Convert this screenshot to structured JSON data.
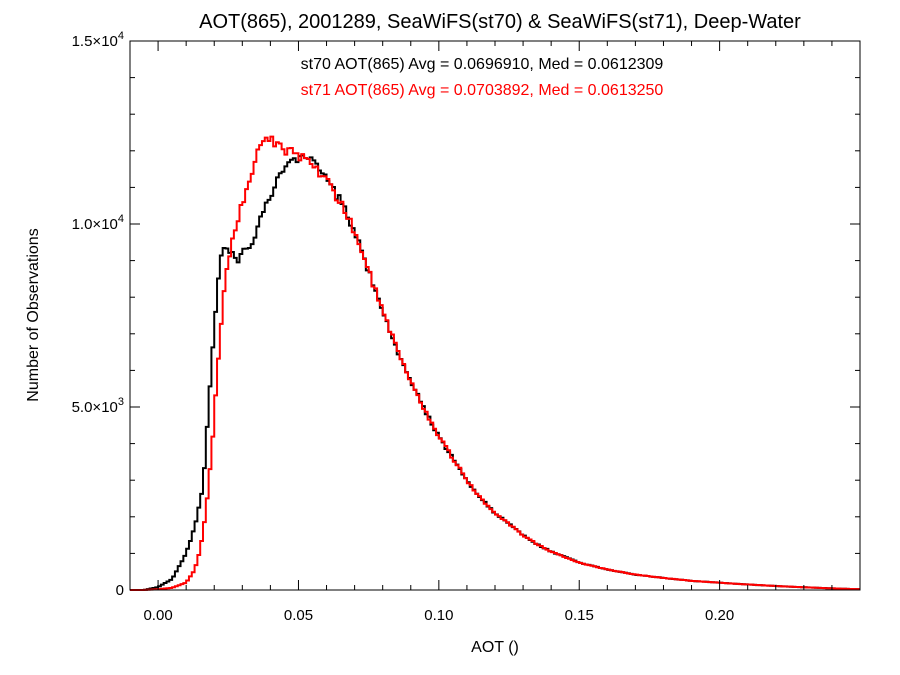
{
  "chart_data": {
    "type": "histogram",
    "title": "AOT(865), 2001289, SeaWiFS(st70) & SeaWiFS(st71), Deep-Water",
    "xlabel": "AOT ()",
    "ylabel": "Number of Observations",
    "xlim": [
      -0.01,
      0.25
    ],
    "ylim": [
      0,
      15000
    ],
    "x_ticks": [
      {
        "value": 0.0,
        "label": "0.00"
      },
      {
        "value": 0.05,
        "label": "0.05"
      },
      {
        "value": 0.1,
        "label": "0.10"
      },
      {
        "value": 0.15,
        "label": "0.15"
      },
      {
        "value": 0.2,
        "label": "0.20"
      }
    ],
    "y_ticks": [
      {
        "value": 0,
        "mantissa": "0",
        "exponent": ""
      },
      {
        "value": 5000,
        "mantissa": "5.0×10",
        "exponent": "3"
      },
      {
        "value": 10000,
        "mantissa": "1.0×10",
        "exponent": "4"
      },
      {
        "value": 15000,
        "mantissa": "1.5×10",
        "exponent": "4"
      }
    ],
    "grid": false,
    "bin_width": 0.001,
    "series": [
      {
        "name": "st70",
        "color": "#000000",
        "stats_label": "st70 AOT(865) Avg = 0.0696910, Med = 0.0612309",
        "points": [
          [
            -0.005,
            0
          ],
          [
            0.0,
            80
          ],
          [
            0.005,
            300
          ],
          [
            0.01,
            1000
          ],
          [
            0.013,
            1700
          ],
          [
            0.016,
            2800
          ],
          [
            0.018,
            5000
          ],
          [
            0.02,
            7200
          ],
          [
            0.022,
            8900
          ],
          [
            0.024,
            9500
          ],
          [
            0.026,
            9200
          ],
          [
            0.028,
            9000
          ],
          [
            0.03,
            9200
          ],
          [
            0.033,
            9400
          ],
          [
            0.036,
            10100
          ],
          [
            0.04,
            10800
          ],
          [
            0.045,
            11500
          ],
          [
            0.05,
            11800
          ],
          [
            0.055,
            11700
          ],
          [
            0.06,
            11200
          ],
          [
            0.065,
            10600
          ],
          [
            0.07,
            9800
          ],
          [
            0.075,
            8700
          ],
          [
            0.08,
            7600
          ],
          [
            0.085,
            6600
          ],
          [
            0.09,
            5700
          ],
          [
            0.095,
            4900
          ],
          [
            0.1,
            4200
          ],
          [
            0.105,
            3600
          ],
          [
            0.11,
            3000
          ],
          [
            0.115,
            2500
          ],
          [
            0.12,
            2100
          ],
          [
            0.125,
            1800
          ],
          [
            0.13,
            1500
          ],
          [
            0.135,
            1250
          ],
          [
            0.14,
            1050
          ],
          [
            0.15,
            750
          ],
          [
            0.16,
            560
          ],
          [
            0.17,
            420
          ],
          [
            0.18,
            330
          ],
          [
            0.19,
            250
          ],
          [
            0.2,
            200
          ],
          [
            0.21,
            150
          ],
          [
            0.22,
            110
          ],
          [
            0.23,
            75
          ],
          [
            0.24,
            45
          ],
          [
            0.248,
            25
          ]
        ]
      },
      {
        "name": "st71",
        "color": "#ff0000",
        "stats_label": "st71 AOT(865) Avg = 0.0703892, Med = 0.0613250",
        "points": [
          [
            -0.005,
            0
          ],
          [
            0.0,
            20
          ],
          [
            0.005,
            60
          ],
          [
            0.01,
            200
          ],
          [
            0.013,
            550
          ],
          [
            0.015,
            1100
          ],
          [
            0.017,
            2100
          ],
          [
            0.019,
            3700
          ],
          [
            0.021,
            5800
          ],
          [
            0.023,
            7800
          ],
          [
            0.025,
            9000
          ],
          [
            0.027,
            9700
          ],
          [
            0.029,
            10300
          ],
          [
            0.031,
            10800
          ],
          [
            0.033,
            11300
          ],
          [
            0.035,
            11900
          ],
          [
            0.038,
            12200
          ],
          [
            0.04,
            12300
          ],
          [
            0.043,
            12100
          ],
          [
            0.046,
            12000
          ],
          [
            0.05,
            11900
          ],
          [
            0.055,
            11600
          ],
          [
            0.06,
            11200
          ],
          [
            0.065,
            10600
          ],
          [
            0.07,
            9800
          ],
          [
            0.075,
            8700
          ],
          [
            0.08,
            7600
          ],
          [
            0.085,
            6600
          ],
          [
            0.09,
            5700
          ],
          [
            0.095,
            4900
          ],
          [
            0.1,
            4200
          ],
          [
            0.105,
            3600
          ],
          [
            0.11,
            3000
          ],
          [
            0.115,
            2500
          ],
          [
            0.12,
            2100
          ],
          [
            0.125,
            1800
          ],
          [
            0.13,
            1500
          ],
          [
            0.135,
            1250
          ],
          [
            0.14,
            1050
          ],
          [
            0.15,
            750
          ],
          [
            0.16,
            560
          ],
          [
            0.17,
            420
          ],
          [
            0.18,
            330
          ],
          [
            0.19,
            250
          ],
          [
            0.2,
            200
          ],
          [
            0.21,
            150
          ],
          [
            0.22,
            110
          ],
          [
            0.23,
            75
          ],
          [
            0.24,
            45
          ],
          [
            0.248,
            25
          ]
        ]
      }
    ]
  }
}
